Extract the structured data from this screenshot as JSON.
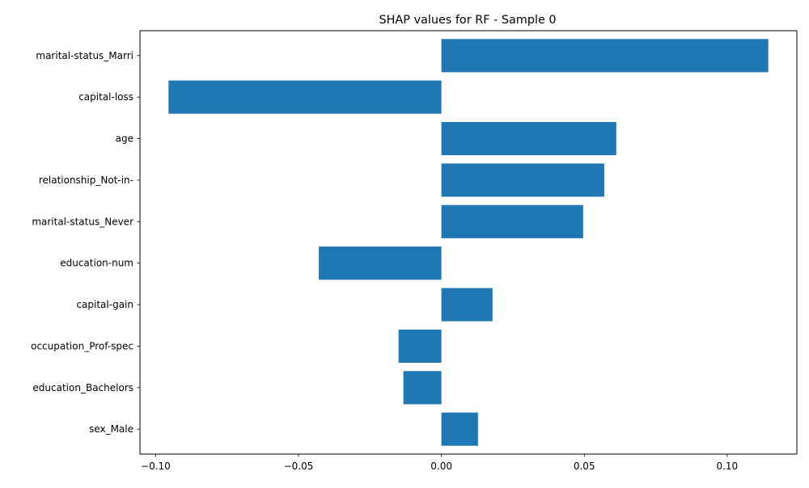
{
  "chart_data": {
    "type": "bar",
    "orientation": "horizontal",
    "title": "SHAP values for RF - Sample 0",
    "xlabel": "",
    "ylabel": "",
    "categories": [
      "marital-status_Marri",
      "capital-loss",
      "age",
      "relationship_Not-in-",
      "marital-status_Never",
      "education-num",
      "capital-gain",
      "occupation_Prof-spec",
      "education_Bachelors",
      "sex_Male"
    ],
    "values": [
      0.1144,
      -0.0955,
      0.0612,
      0.057,
      0.0496,
      -0.0429,
      0.0179,
      -0.015,
      -0.0133,
      0.0128
    ],
    "xlim": [
      -0.1055,
      0.1244
    ],
    "xticks": [
      -0.1,
      -0.05,
      0.0,
      0.05,
      0.1
    ],
    "xtick_labels": [
      "−0.10",
      "−0.05",
      "0.00",
      "0.05",
      "0.10"
    ],
    "grid": false,
    "colors": {
      "bar": "#1f77b4"
    }
  }
}
